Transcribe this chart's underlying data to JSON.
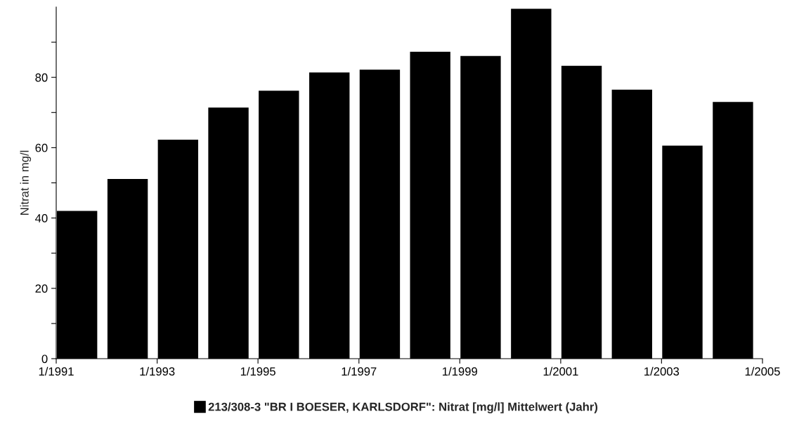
{
  "chart_data": {
    "type": "bar",
    "ylabel": "Nitrat in mg/l",
    "x": [
      "1991-06",
      "1992-06",
      "1993-06",
      "1994-06",
      "1995-06",
      "1996-06",
      "1997-06",
      "1998-06",
      "1999-06",
      "2000-06",
      "2001-06",
      "2002-06",
      "2003-06",
      "2004-06"
    ],
    "series": [
      {
        "name": "213/308-3 \"BR I BOESER, KARLSDORF\": Nitrat [mg/l] Mittelwert (Jahr)",
        "color": "#000000",
        "values": [
          42,
          51.1,
          62.3,
          71.4,
          76.2,
          81.4,
          82.2,
          87.3,
          86.1,
          99.5,
          83.3,
          76.5,
          60.6,
          73.0
        ]
      }
    ],
    "xlim": [
      "1991-01",
      "2005-01"
    ],
    "xticks": [
      {
        "value": "1991-01",
        "label": "1/1991"
      },
      {
        "value": "1993-01",
        "label": "1/1993"
      },
      {
        "value": "1995-01",
        "label": "1/1995"
      },
      {
        "value": "1997-01",
        "label": "1/1997"
      },
      {
        "value": "1999-01",
        "label": "1/1999"
      },
      {
        "value": "2001-01",
        "label": "1/2001"
      },
      {
        "value": "2003-01",
        "label": "1/2003"
      },
      {
        "value": "2005-01",
        "label": "1/2005"
      }
    ],
    "ylim": [
      0,
      100
    ],
    "yticks": [
      0,
      {
        "value": 10,
        "label": null
      },
      20,
      {
        "value": 30,
        "label": null
      },
      40,
      {
        "value": 50,
        "label": null
      },
      60,
      {
        "value": 70,
        "label": null
      },
      80,
      {
        "value": 90,
        "label": null
      }
    ],
    "grid": false,
    "legend": "bottom"
  }
}
